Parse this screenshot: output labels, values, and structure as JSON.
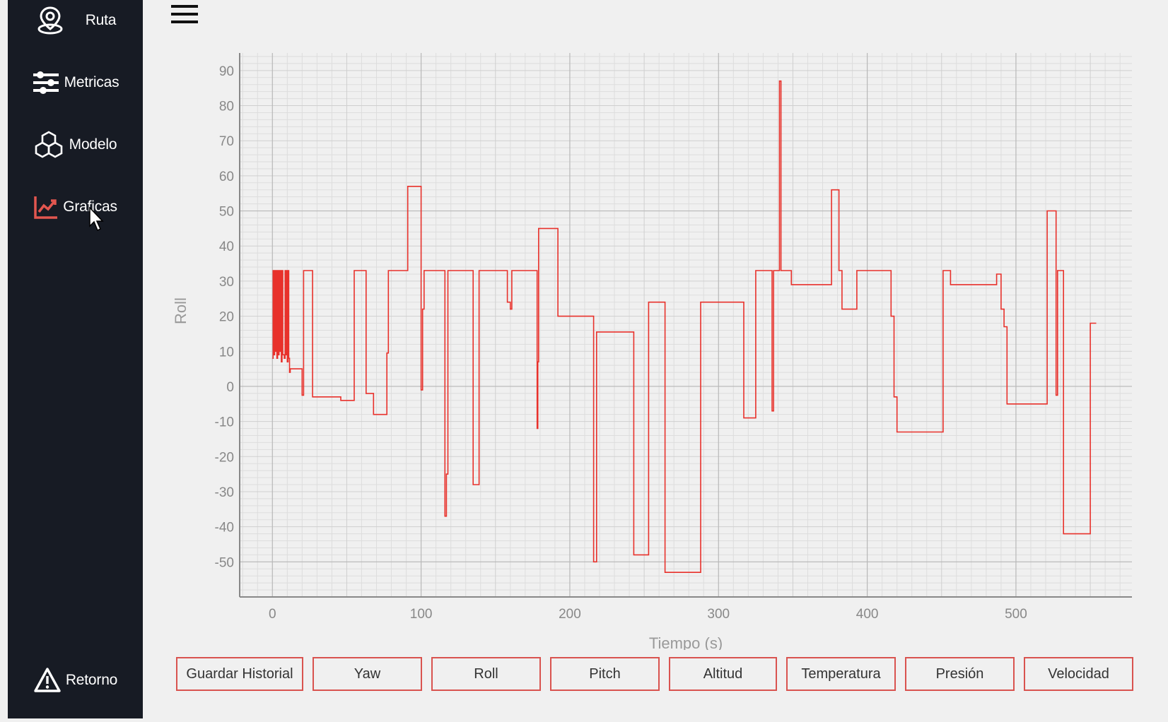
{
  "sidebar": {
    "items": [
      {
        "label": "Ruta",
        "icon": "map-pin-icon"
      },
      {
        "label": "Metricas",
        "icon": "sliders-icon"
      },
      {
        "label": "Modelo",
        "icon": "cubes-icon"
      },
      {
        "label": "Graficas",
        "icon": "chart-line-icon",
        "active": true,
        "accent": "#e2564f"
      }
    ],
    "bottom": {
      "label": "Retorno",
      "icon": "warning-triangle-icon"
    }
  },
  "header": {
    "menu_icon": "hamburger-menu-icon"
  },
  "buttons": [
    "Guardar Historial",
    "Yaw",
    "Roll",
    "Pitch",
    "Altitud",
    "Temperatura",
    "Presión",
    "Velocidad"
  ],
  "colors": {
    "sidebar_bg": "#171b24",
    "accent": "#e2564f",
    "line": "#e8312b",
    "button_border": "#d9534f"
  },
  "chart_data": {
    "type": "line",
    "title": "",
    "xlabel": "Tiempo (s)",
    "ylabel": "Roll",
    "xlim": [
      -22,
      578
    ],
    "ylim": [
      -60,
      95
    ],
    "x_ticks": [
      0,
      100,
      200,
      300,
      400,
      500
    ],
    "y_ticks": [
      90,
      80,
      70,
      60,
      50,
      40,
      30,
      20,
      10,
      0,
      -10,
      -20,
      -30,
      -40,
      -50
    ],
    "grid": true,
    "step": true,
    "series": [
      {
        "color": "#e8312b",
        "points": [
          [
            0,
            8
          ],
          [
            0.5,
            33
          ],
          [
            1,
            9
          ],
          [
            1.5,
            33
          ],
          [
            2,
            10
          ],
          [
            2.5,
            33
          ],
          [
            3,
            8
          ],
          [
            3.5,
            33
          ],
          [
            4,
            9
          ],
          [
            4.5,
            33
          ],
          [
            5,
            10
          ],
          [
            5.5,
            33
          ],
          [
            6,
            7
          ],
          [
            6.5,
            33
          ],
          [
            7,
            9
          ],
          [
            8,
            8
          ],
          [
            8.5,
            33
          ],
          [
            9,
            9
          ],
          [
            9.5,
            33
          ],
          [
            10,
            7
          ],
          [
            10.5,
            33
          ],
          [
            11,
            8
          ],
          [
            11.5,
            4
          ],
          [
            12,
            5
          ],
          [
            20,
            -2.5
          ],
          [
            21,
            33
          ],
          [
            27,
            -3
          ],
          [
            46,
            -4
          ],
          [
            55,
            33
          ],
          [
            63,
            -2
          ],
          [
            68,
            -8
          ],
          [
            77,
            9.5
          ],
          [
            78,
            33
          ],
          [
            91,
            57
          ],
          [
            100,
            -1
          ],
          [
            101,
            22
          ],
          [
            102,
            33
          ],
          [
            116,
            -37
          ],
          [
            117,
            -25
          ],
          [
            118,
            33
          ],
          [
            135,
            -28
          ],
          [
            139,
            33
          ],
          [
            158,
            24
          ],
          [
            160,
            22
          ],
          [
            161,
            33
          ],
          [
            178,
            -12
          ],
          [
            178.5,
            7
          ],
          [
            179,
            45
          ],
          [
            192,
            20
          ],
          [
            216,
            -50
          ],
          [
            218,
            15.5
          ],
          [
            243,
            -48
          ],
          [
            253,
            24
          ],
          [
            264,
            -53
          ],
          [
            288,
            24
          ],
          [
            317,
            -9
          ],
          [
            325,
            33
          ],
          [
            336,
            -7
          ],
          [
            337,
            33
          ],
          [
            341,
            87
          ],
          [
            342,
            33
          ],
          [
            349,
            29
          ],
          [
            376,
            56
          ],
          [
            381,
            33
          ],
          [
            383,
            22
          ],
          [
            393,
            33
          ],
          [
            416,
            20
          ],
          [
            418,
            -3
          ],
          [
            420,
            -13
          ],
          [
            451,
            33
          ],
          [
            456,
            29
          ],
          [
            487,
            32
          ],
          [
            490,
            22
          ],
          [
            492,
            17
          ],
          [
            494,
            -5
          ],
          [
            521,
            50
          ],
          [
            527,
            -2.5
          ],
          [
            528,
            33
          ],
          [
            532,
            -42
          ],
          [
            550,
            18
          ],
          [
            554,
            18
          ]
        ]
      }
    ]
  }
}
